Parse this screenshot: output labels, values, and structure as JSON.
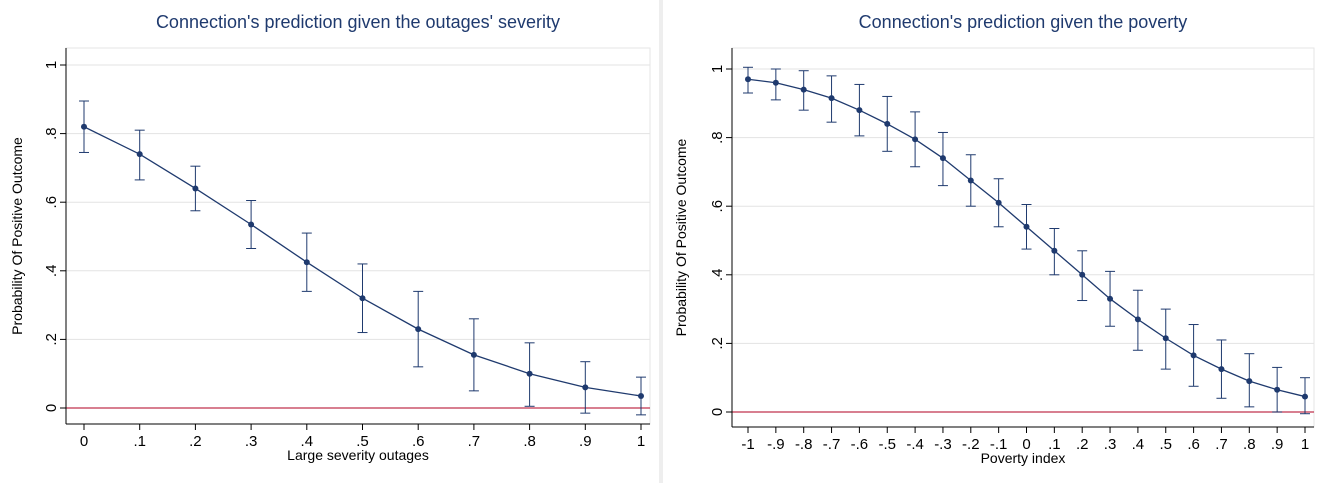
{
  "chart_data": [
    {
      "type": "line",
      "title": "Connection's prediction given the outages' severity",
      "xlabel": "Large severity outages",
      "ylabel": "Probability Of Positive Outcome",
      "x": [
        0,
        0.1,
        0.2,
        0.3,
        0.4,
        0.5,
        0.6,
        0.7,
        0.8,
        0.9,
        1
      ],
      "x_tick_labels": [
        "0",
        ".1",
        ".2",
        ".3",
        ".4",
        ".5",
        ".6",
        ".7",
        ".8",
        ".9",
        "1"
      ],
      "y_tick_labels": [
        "0",
        ".2",
        ".4",
        ".6",
        ".8",
        "1"
      ],
      "xlim": [
        0,
        1
      ],
      "ylim": [
        0,
        1
      ],
      "series": [
        {
          "values": [
            0.82,
            0.74,
            0.64,
            0.535,
            0.425,
            0.32,
            0.23,
            0.155,
            0.1,
            0.06,
            0.035
          ],
          "ci_lower": [
            0.745,
            0.665,
            0.575,
            0.465,
            0.34,
            0.22,
            0.12,
            0.05,
            0.005,
            -0.015,
            -0.02
          ],
          "ci_upper": [
            0.895,
            0.81,
            0.705,
            0.605,
            0.51,
            0.42,
            0.34,
            0.26,
            0.19,
            0.135,
            0.09
          ]
        }
      ],
      "reference_line_y": 0,
      "grid": true
    },
    {
      "type": "line",
      "title": "Connection's prediction given the poverty",
      "xlabel": "Poverty index",
      "ylabel": "Probability Of Positive Outcome",
      "x": [
        -1,
        -0.9,
        -0.8,
        -0.7,
        -0.6,
        -0.5,
        -0.4,
        -0.3,
        -0.2,
        -0.1,
        0,
        0.1,
        0.2,
        0.3,
        0.4,
        0.5,
        0.6,
        0.7,
        0.8,
        0.9,
        1
      ],
      "x_tick_labels": [
        "-1",
        "-.9",
        "-.8",
        "-.7",
        "-.6",
        "-.5",
        "-.4",
        "-.3",
        "-.2",
        "-.1",
        "0",
        ".1",
        ".2",
        ".3",
        ".4",
        ".5",
        ".6",
        ".7",
        ".8",
        ".9",
        "1"
      ],
      "y_tick_labels": [
        "0",
        ".2",
        ".4",
        ".6",
        ".8",
        "1"
      ],
      "xlim": [
        -1,
        1
      ],
      "ylim": [
        0,
        1
      ],
      "series": [
        {
          "values": [
            0.97,
            0.96,
            0.94,
            0.915,
            0.88,
            0.84,
            0.795,
            0.74,
            0.675,
            0.61,
            0.54,
            0.47,
            0.4,
            0.33,
            0.27,
            0.215,
            0.165,
            0.125,
            0.09,
            0.065,
            0.045
          ],
          "ci_lower": [
            0.93,
            0.91,
            0.88,
            0.845,
            0.805,
            0.76,
            0.715,
            0.66,
            0.6,
            0.54,
            0.475,
            0.4,
            0.325,
            0.25,
            0.18,
            0.125,
            0.075,
            0.04,
            0.015,
            0.0,
            -0.005
          ],
          "ci_upper": [
            1.005,
            1.0,
            0.995,
            0.98,
            0.955,
            0.92,
            0.875,
            0.815,
            0.75,
            0.68,
            0.605,
            0.535,
            0.47,
            0.41,
            0.355,
            0.3,
            0.255,
            0.21,
            0.17,
            0.13,
            0.1
          ]
        }
      ],
      "reference_line_y": 0,
      "grid": true
    }
  ]
}
